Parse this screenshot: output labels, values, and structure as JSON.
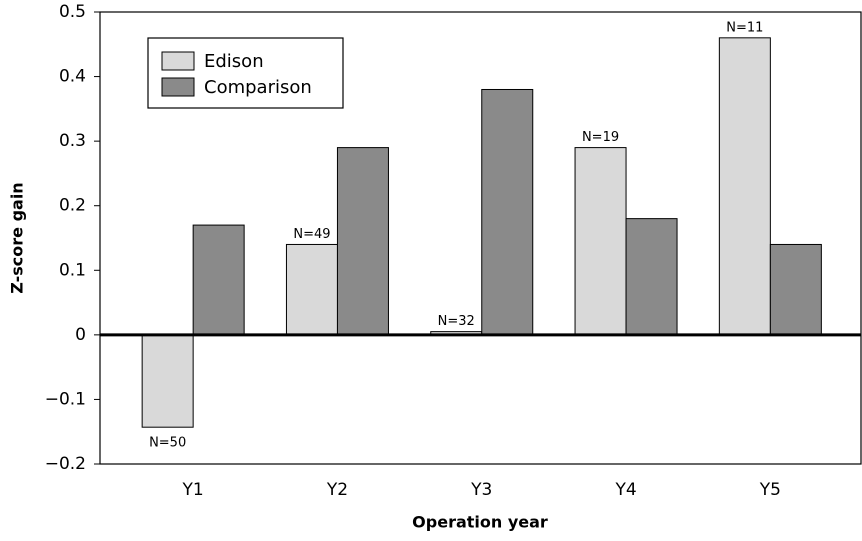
{
  "chart_data": {
    "type": "bar",
    "x_label": "Operation year",
    "y_label": "Z-score gain",
    "categories": [
      "Y1",
      "Y2",
      "Y3",
      "Y4",
      "Y5"
    ],
    "series": [
      {
        "name": "Edison",
        "color": "#d9d9d9",
        "values": [
          -0.143,
          0.14,
          0.005,
          0.29,
          0.46
        ]
      },
      {
        "name": "Comparison",
        "color": "#8a8a8a",
        "values": [
          0.17,
          0.29,
          0.38,
          0.18,
          0.14
        ]
      }
    ],
    "annotations": [
      "N=50",
      "N=49",
      "N=32",
      "N=19",
      "N=11"
    ],
    "ylim": [
      -0.2,
      0.5
    ],
    "yticks": [
      {
        "value": -0.2,
        "label": "−0.2"
      },
      {
        "value": -0.1,
        "label": "−0.1"
      },
      0,
      0.1,
      0.2,
      0.3,
      0.4,
      0.5
    ],
    "grid": false,
    "legend": "upper left"
  }
}
